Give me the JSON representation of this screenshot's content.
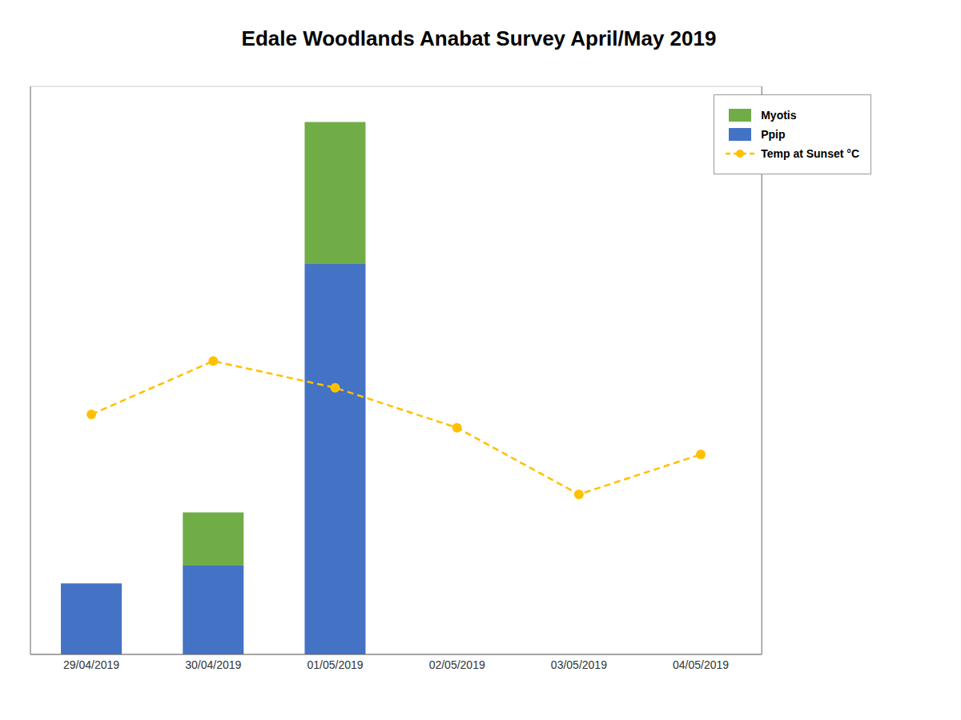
{
  "chart_data": {
    "type": "bar",
    "title": "Edale Woodlands Anabat Survey April/May 2019",
    "categories": [
      "29/04/2019",
      "30/04/2019",
      "01/05/2019",
      "02/05/2019",
      "03/05/2019",
      "04/05/2019"
    ],
    "series": [
      {
        "name": "Myotis",
        "type": "bar",
        "color": "#70AD47",
        "values": [
          0,
          3,
          8,
          0,
          0,
          0
        ]
      },
      {
        "name": "Ppip",
        "type": "bar",
        "color": "#4472C4",
        "values": [
          4,
          5,
          22,
          0,
          0,
          0
        ]
      },
      {
        "name": "Temp at Sunset °C",
        "type": "line",
        "axis": "y2",
        "color": "#FFC000",
        "marker": "circle",
        "line_style": "dashed",
        "values": [
          9.0,
          11.0,
          10.0,
          8.5,
          6.0,
          7.5
        ]
      }
    ],
    "stacked": true,
    "ylim": [
      0,
      32
    ],
    "yticks": [
      0,
      4,
      8,
      12,
      16,
      20,
      24,
      28,
      32
    ],
    "y2lim": [
      0,
      21.3
    ],
    "y2ticks": [],
    "grid": true,
    "legend": "upper right",
    "tick_labels": "x"
  }
}
